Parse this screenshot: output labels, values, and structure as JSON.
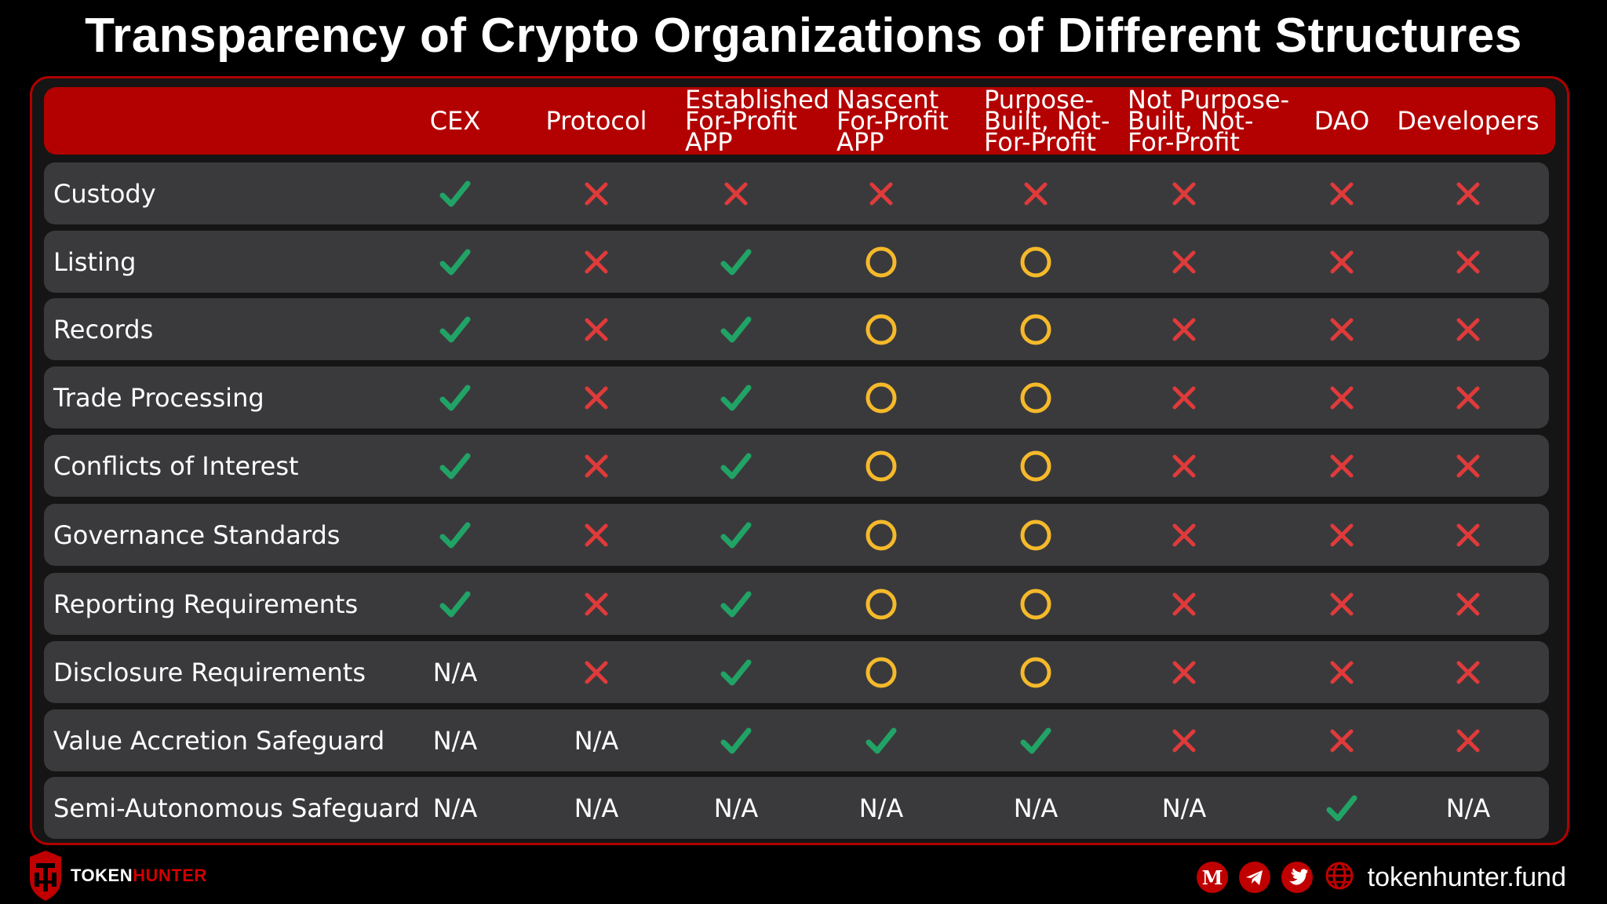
{
  "title": "Transparency of Crypto Organizations of Different Structures",
  "columns": [
    "CEX",
    "Protocol",
    "Established\nFor-Profit\nAPP",
    "Nascent\nFor-Profit\nAPP",
    "Purpose-\nBuilt, Not-\nFor-Profit",
    "Not Purpose-\nBuilt, Not-\nFor-Profit",
    "DAO",
    "Developers"
  ],
  "rows": [
    {
      "label": "Custody",
      "cells": [
        "check",
        "x",
        "x",
        "x",
        "x",
        "x",
        "x",
        "x"
      ]
    },
    {
      "label": "Listing",
      "cells": [
        "check",
        "x",
        "check",
        "circle",
        "circle",
        "x",
        "x",
        "x"
      ]
    },
    {
      "label": "Records",
      "cells": [
        "check",
        "x",
        "check",
        "circle",
        "circle",
        "x",
        "x",
        "x"
      ]
    },
    {
      "label": "Trade Processing",
      "cells": [
        "check",
        "x",
        "check",
        "circle",
        "circle",
        "x",
        "x",
        "x"
      ]
    },
    {
      "label": "Conflicts of Interest",
      "cells": [
        "check",
        "x",
        "check",
        "circle",
        "circle",
        "x",
        "x",
        "x"
      ]
    },
    {
      "label": "Governance Standards",
      "cells": [
        "check",
        "x",
        "check",
        "circle",
        "circle",
        "x",
        "x",
        "x"
      ]
    },
    {
      "label": "Reporting Requirements",
      "cells": [
        "check",
        "x",
        "check",
        "circle",
        "circle",
        "x",
        "x",
        "x"
      ]
    },
    {
      "label": "Disclosure Requirements",
      "cells": [
        "N/A",
        "x",
        "check",
        "circle",
        "circle",
        "x",
        "x",
        "x"
      ]
    },
    {
      "label": "Value Accretion Safeguard",
      "cells": [
        "N/A",
        "N/A",
        "check",
        "check",
        "check",
        "x",
        "x",
        "x"
      ]
    },
    {
      "label": "Semi-Autonomous Safeguard",
      "cells": [
        "N/A",
        "N/A",
        "N/A",
        "N/A",
        "N/A",
        "N/A",
        "check",
        "N/A"
      ]
    }
  ],
  "legend_icons": {
    "check": "check-icon",
    "x": "cross-icon",
    "circle": "circle-icon"
  },
  "colors": {
    "header": "#b30000",
    "row": "#3a3a3d",
    "check": "#21a366",
    "cross": "#e03a3a",
    "circle": "#f5b92a"
  },
  "footer": {
    "brand_a": "TOKEN",
    "brand_b": "HUNTER",
    "site": "tokenhunter.fund"
  }
}
